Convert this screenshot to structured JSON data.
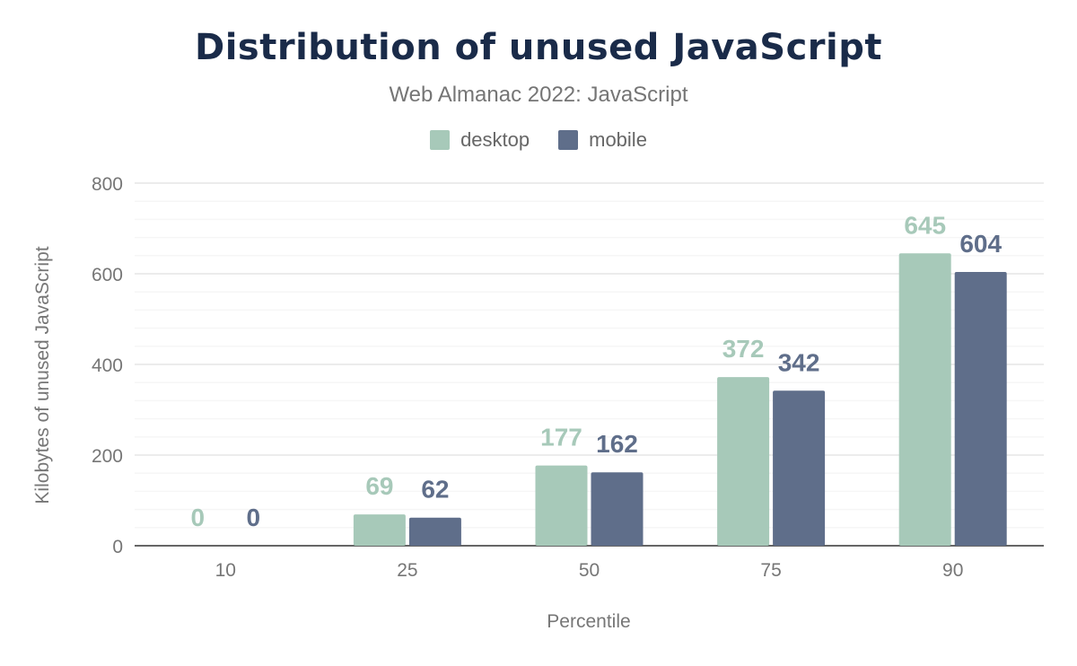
{
  "chart_data": {
    "type": "bar",
    "title": "Distribution of unused JavaScript",
    "subtitle": "Web Almanac 2022: JavaScript",
    "xlabel": "Percentile",
    "ylabel": "Kilobytes of unused JavaScript",
    "categories": [
      "10",
      "25",
      "50",
      "75",
      "90"
    ],
    "series": [
      {
        "name": "desktop",
        "color": "#a7c9b9",
        "values": [
          0,
          69,
          177,
          372,
          645
        ]
      },
      {
        "name": "mobile",
        "color": "#5f6e8a",
        "values": [
          0,
          62,
          162,
          342,
          604
        ]
      }
    ],
    "ylim": [
      0,
      800
    ],
    "yticks": [
      "0",
      "200",
      "400",
      "600",
      "800"
    ],
    "grid": true,
    "legend": "top-center",
    "data_labels": true
  }
}
